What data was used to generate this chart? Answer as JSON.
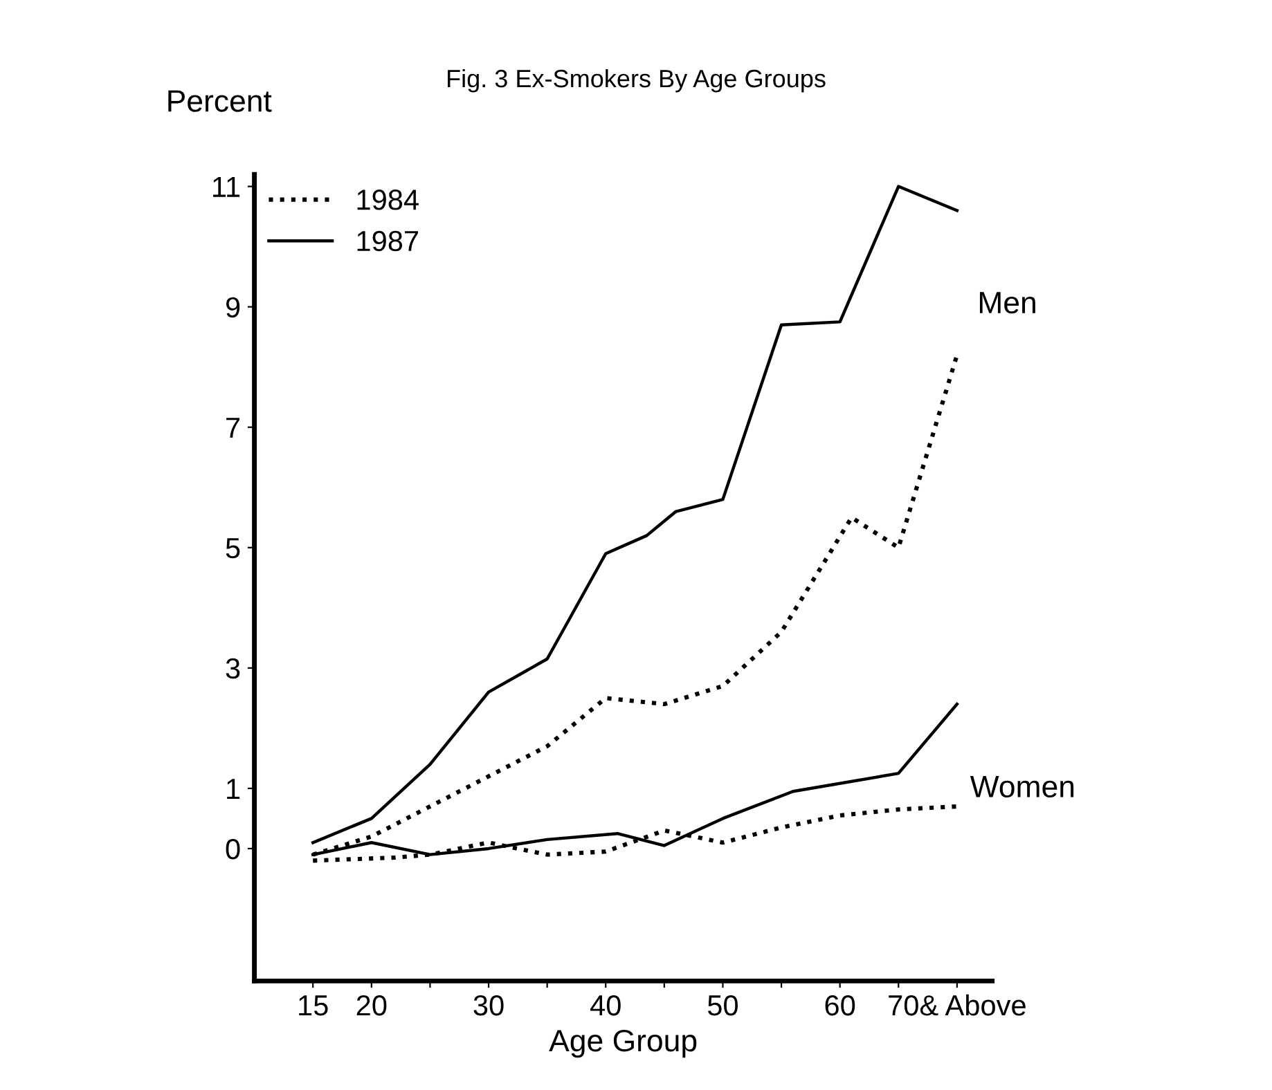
{
  "chart_data": {
    "type": "line",
    "title": "Fig. 3 Ex-Smokers By Age Groups",
    "xlabel": "Age Group",
    "ylabel": "Percent",
    "series": [
      {
        "name": "1984",
        "color": "#000000",
        "line_style": "dotted",
        "x": [
          15,
          20,
          25,
          30,
          35,
          40,
          45,
          50,
          55,
          61,
          65,
          70
        ],
        "values": [
          -0.1,
          0.2,
          0.7,
          1.2,
          1.7,
          2.5,
          2.4,
          2.7,
          3.6,
          5.5,
          5.0,
          8.2
        ]
      },
      {
        "name": "1987",
        "color": "#000000",
        "line_style": "solid",
        "x": [
          15,
          20,
          25,
          30,
          35,
          40,
          43.5,
          46,
          50,
          55,
          60,
          65,
          70
        ],
        "values": [
          0.1,
          0.5,
          1.4,
          2.6,
          3.15,
          4.9,
          5.2,
          5.6,
          5.8,
          8.7,
          8.75,
          11.0,
          10.6
        ]
      },
      {
        "color": "#000000",
        "line_style": "dotted",
        "x": [
          15,
          22,
          25,
          30,
          35,
          40,
          45,
          50,
          55,
          60,
          65,
          70
        ],
        "values": [
          -0.2,
          -0.15,
          -0.1,
          0.1,
          -0.1,
          -0.05,
          0.3,
          0.1,
          0.35,
          0.55,
          0.65,
          0.7
        ]
      },
      {
        "color": "#000000",
        "line_style": "solid",
        "x": [
          15,
          20,
          25,
          30,
          35,
          41,
          45,
          50,
          56,
          65,
          70
        ],
        "values": [
          -0.1,
          0.1,
          -0.1,
          0.0,
          0.15,
          0.25,
          0.05,
          0.5,
          0.95,
          1.25,
          2.4
        ]
      }
    ],
    "xlim": [
      10,
      73
    ],
    "ylim": [
      -2.2,
      11.2
    ],
    "xticks": [
      15,
      20,
      {
        "value": 25,
        "label": null
      },
      30,
      {
        "value": 35,
        "label": null
      },
      40,
      {
        "value": 45,
        "label": null
      },
      50,
      {
        "value": 55,
        "label": null
      },
      60,
      {
        "value": 65,
        "label": null
      },
      {
        "value": 70,
        "label": "70& Above"
      }
    ],
    "yticks": [
      0,
      1,
      3,
      5,
      7,
      9,
      11
    ],
    "annotations": [
      "Men",
      "Women"
    ],
    "legend": "top left",
    "grid": false
  }
}
